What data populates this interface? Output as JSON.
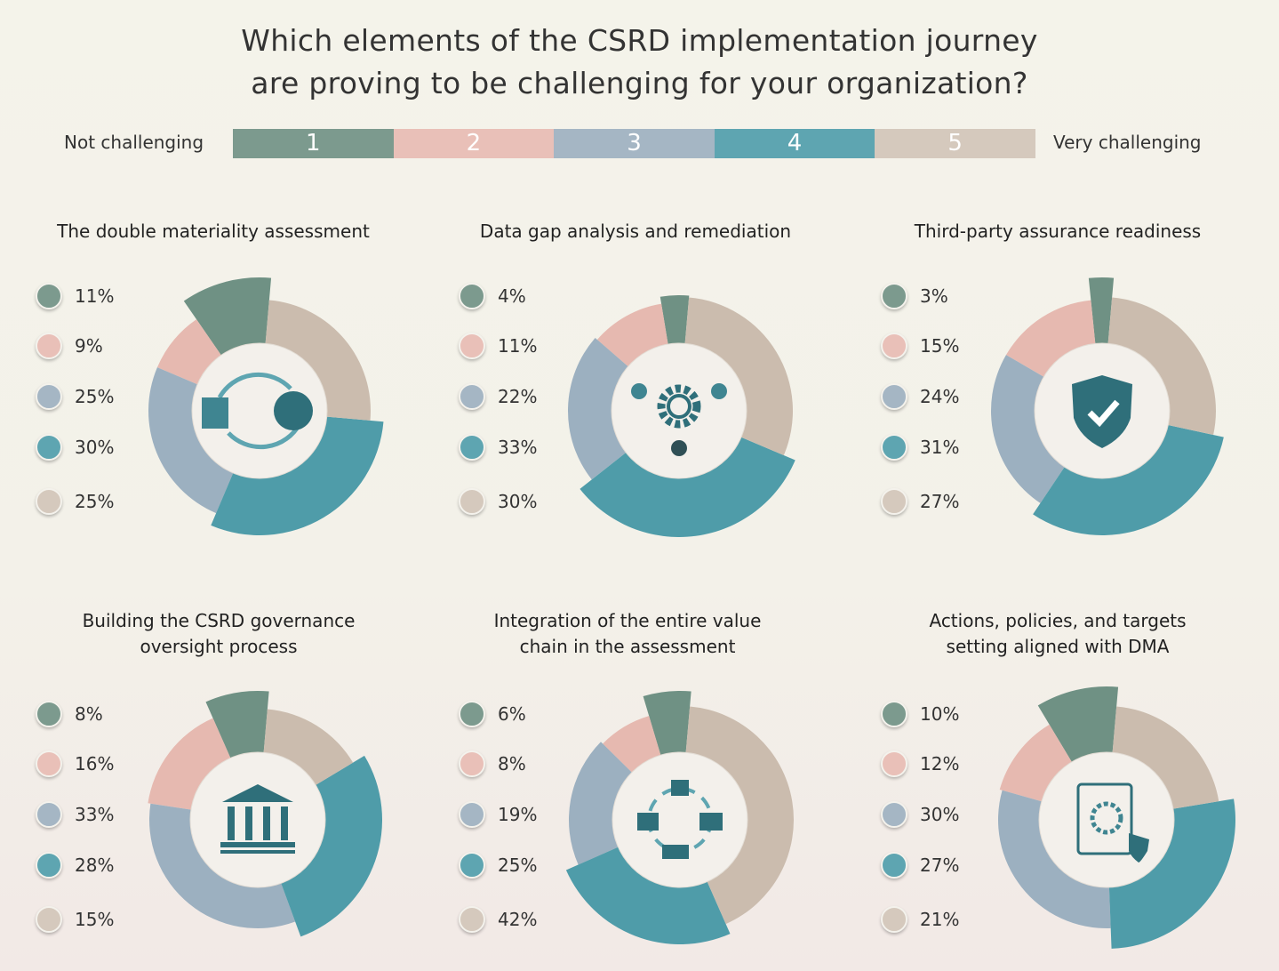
{
  "title_lines": [
    "Which elements of the CSRD implementation journey",
    "are proving to be challenging for your organization?"
  ],
  "scale": {
    "low_label": "Not challenging",
    "high_label": "Very challenging",
    "levels": [
      "1",
      "2",
      "3",
      "4",
      "5"
    ],
    "colors": [
      "#7c9a8e",
      "#e9c0b8",
      "#a5b6c4",
      "#5ea5b1",
      "#d5c9bd"
    ]
  },
  "chart_data": [
    {
      "type": "pie",
      "title": "The double materiality assessment",
      "icon": "company-globe-exchange-icon",
      "categories": [
        "1",
        "2",
        "3",
        "4",
        "5"
      ],
      "values": [
        11,
        9,
        25,
        30,
        25
      ],
      "labels": [
        "11%",
        "9%",
        "25%",
        "30%",
        "25%"
      ]
    },
    {
      "type": "pie",
      "title": "Data gap analysis and remediation",
      "icon": "gear-cycle-icon",
      "categories": [
        "1",
        "2",
        "3",
        "4",
        "5"
      ],
      "values": [
        4,
        11,
        22,
        33,
        30
      ],
      "labels": [
        "4%",
        "11%",
        "22%",
        "33%",
        "30%"
      ]
    },
    {
      "type": "pie",
      "title": "Third-party assurance readiness",
      "icon": "shield-check-icon",
      "categories": [
        "1",
        "2",
        "3",
        "4",
        "5"
      ],
      "values": [
        3,
        15,
        24,
        31,
        27
      ],
      "labels": [
        "3%",
        "15%",
        "24%",
        "31%",
        "27%"
      ]
    },
    {
      "type": "pie",
      "title": "Building the CSRD governance oversight process",
      "icon": "governance-building-icon",
      "categories": [
        "1",
        "2",
        "3",
        "4",
        "5"
      ],
      "values": [
        8,
        16,
        33,
        28,
        15
      ],
      "labels": [
        "8%",
        "16%",
        "33%",
        "28%",
        "15%"
      ]
    },
    {
      "type": "pie",
      "title": "Integration of the entire value chain in the assessment",
      "icon": "value-chain-icon",
      "categories": [
        "1",
        "2",
        "3",
        "4",
        "5"
      ],
      "values": [
        6,
        8,
        19,
        25,
        42
      ],
      "labels": [
        "6%",
        "8%",
        "19%",
        "25%",
        "42%"
      ]
    },
    {
      "type": "pie",
      "title": "Actions, policies, and targets setting aligned with DMA",
      "icon": "policy-clipboard-icon",
      "categories": [
        "1",
        "2",
        "3",
        "4",
        "5"
      ],
      "values": [
        10,
        12,
        30,
        27,
        21
      ],
      "labels": [
        "10%",
        "12%",
        "30%",
        "27%",
        "21%"
      ]
    }
  ]
}
